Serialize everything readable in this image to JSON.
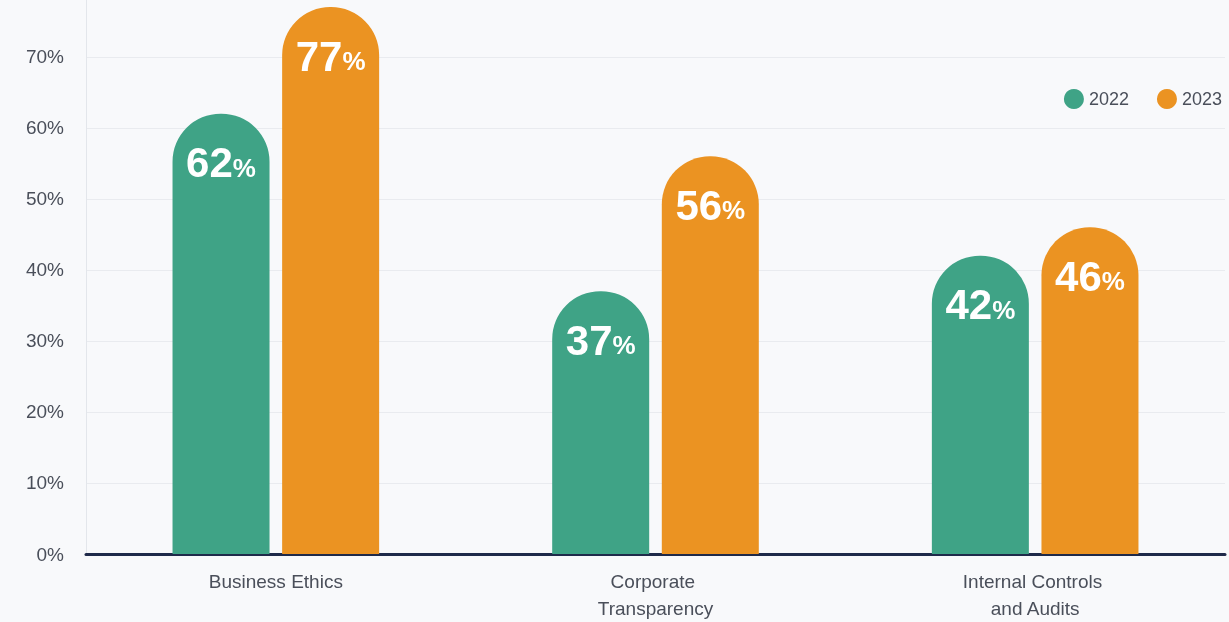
{
  "chart_data": {
    "type": "bar",
    "categories": [
      "Business Ethics",
      "Corporate Transparency",
      "Internal Controls and Audits"
    ],
    "series": [
      {
        "name": "2022",
        "color": "#3fa386",
        "values": [
          62,
          37,
          42
        ],
        "value_labels": [
          "62%",
          "37%",
          "42%"
        ]
      },
      {
        "name": "2023",
        "color": "#eb9322",
        "values": [
          77,
          56,
          46
        ],
        "value_labels": [
          "77%",
          "56%",
          "46%"
        ]
      }
    ],
    "yticks": [
      {
        "value": 0,
        "label": "0%"
      },
      {
        "value": 10,
        "label": "10%"
      },
      {
        "value": 20,
        "label": "20%"
      },
      {
        "value": 30,
        "label": "30%"
      },
      {
        "value": 40,
        "label": "40%"
      },
      {
        "value": 50,
        "label": "50%"
      },
      {
        "value": 60,
        "label": "60%"
      },
      {
        "value": 70,
        "label": "70%"
      }
    ],
    "ylim": [
      0,
      78
    ],
    "grid": "y",
    "legend": "top right"
  }
}
